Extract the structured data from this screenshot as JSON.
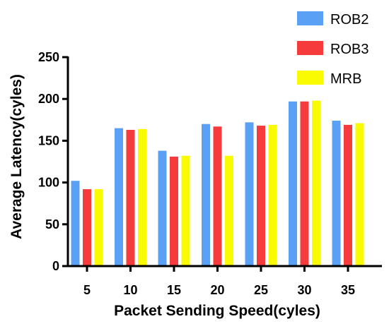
{
  "chart_data": {
    "type": "bar",
    "categories": [
      "5",
      "10",
      "15",
      "20",
      "25",
      "30",
      "35"
    ],
    "series": [
      {
        "name": "ROB2",
        "color": "#5aa0f5",
        "values": [
          102,
          165,
          138,
          170,
          172,
          197,
          174
        ]
      },
      {
        "name": "ROB3",
        "color": "#f53b3b",
        "values": [
          92,
          163,
          131,
          167,
          168,
          197,
          169
        ]
      },
      {
        "name": "MRB",
        "color": "#fafa00",
        "values": [
          92,
          164,
          132,
          132,
          169,
          198,
          171
        ]
      }
    ],
    "xlabel": "Packet Sending Speed(cyles)",
    "ylabel": "Average Latency(cyles)",
    "ylim": [
      0,
      250
    ],
    "yticks": [
      0,
      50,
      100,
      150,
      200,
      250
    ],
    "grid": false,
    "legend_position": "top-right"
  }
}
